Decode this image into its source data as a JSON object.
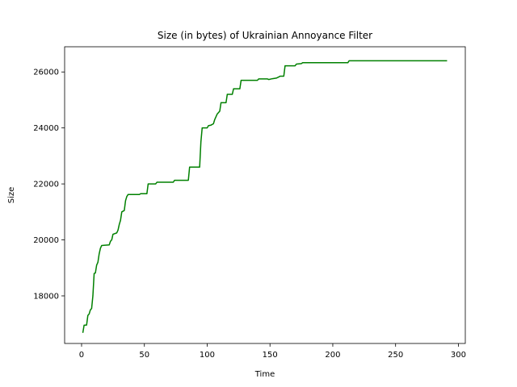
{
  "chart_data": {
    "type": "line",
    "title": "Size (in bytes) of Ukrainian Annoyance Filter",
    "xlabel": "Time",
    "ylabel": "Size",
    "xlim": [
      -13.5,
      305.5
    ],
    "ylim": [
      16300,
      26900
    ],
    "xticks": [
      0,
      50,
      100,
      150,
      200,
      250,
      300
    ],
    "yticks": [
      18000,
      20000,
      22000,
      24000,
      26000
    ],
    "xtick_labels": [
      "0",
      "50",
      "100",
      "150",
      "200",
      "250",
      "300"
    ],
    "ytick_labels": [
      "18000",
      "20000",
      "22000",
      "24000",
      "26000"
    ],
    "grid": false,
    "series": [
      {
        "color": "#008000",
        "points": [
          [
            1,
            16680
          ],
          [
            2,
            16950
          ],
          [
            4,
            16960
          ],
          [
            5,
            17300
          ],
          [
            6,
            17350
          ],
          [
            7,
            17500
          ],
          [
            8,
            17550
          ],
          [
            9,
            18000
          ],
          [
            10,
            18800
          ],
          [
            11,
            18820
          ],
          [
            12,
            19100
          ],
          [
            13,
            19200
          ],
          [
            14,
            19500
          ],
          [
            15,
            19700
          ],
          [
            16,
            19800
          ],
          [
            22,
            19820
          ],
          [
            23,
            19950
          ],
          [
            24,
            20000
          ],
          [
            25,
            20200
          ],
          [
            28,
            20250
          ],
          [
            29,
            20350
          ],
          [
            30,
            20550
          ],
          [
            31,
            20700
          ],
          [
            32,
            21000
          ],
          [
            34,
            21050
          ],
          [
            35,
            21400
          ],
          [
            36,
            21550
          ],
          [
            37,
            21620
          ],
          [
            46,
            21620
          ],
          [
            47,
            21650
          ],
          [
            52,
            21650
          ],
          [
            53,
            22000
          ],
          [
            59,
            22000
          ],
          [
            60,
            22060
          ],
          [
            73,
            22060
          ],
          [
            74,
            22130
          ],
          [
            85,
            22130
          ],
          [
            86,
            22600
          ],
          [
            94,
            22600
          ],
          [
            95,
            23500
          ],
          [
            96,
            24000
          ],
          [
            100,
            24000
          ],
          [
            101,
            24080
          ],
          [
            103,
            24100
          ],
          [
            105,
            24150
          ],
          [
            106,
            24300
          ],
          [
            107,
            24400
          ],
          [
            108,
            24500
          ],
          [
            110,
            24600
          ],
          [
            111,
            24900
          ],
          [
            115,
            24900
          ],
          [
            116,
            25200
          ],
          [
            120,
            25200
          ],
          [
            121,
            25400
          ],
          [
            126,
            25400
          ],
          [
            127,
            25700
          ],
          [
            140,
            25700
          ],
          [
            141,
            25750
          ],
          [
            148,
            25750
          ],
          [
            149,
            25730
          ],
          [
            152,
            25760
          ],
          [
            155,
            25780
          ],
          [
            157,
            25820
          ],
          [
            158,
            25850
          ],
          [
            161,
            25850
          ],
          [
            162,
            26220
          ],
          [
            170,
            26220
          ],
          [
            171,
            26280
          ],
          [
            175,
            26300
          ],
          [
            176,
            26330
          ],
          [
            212,
            26330
          ],
          [
            213,
            26400
          ],
          [
            291,
            26400
          ]
        ]
      }
    ]
  }
}
